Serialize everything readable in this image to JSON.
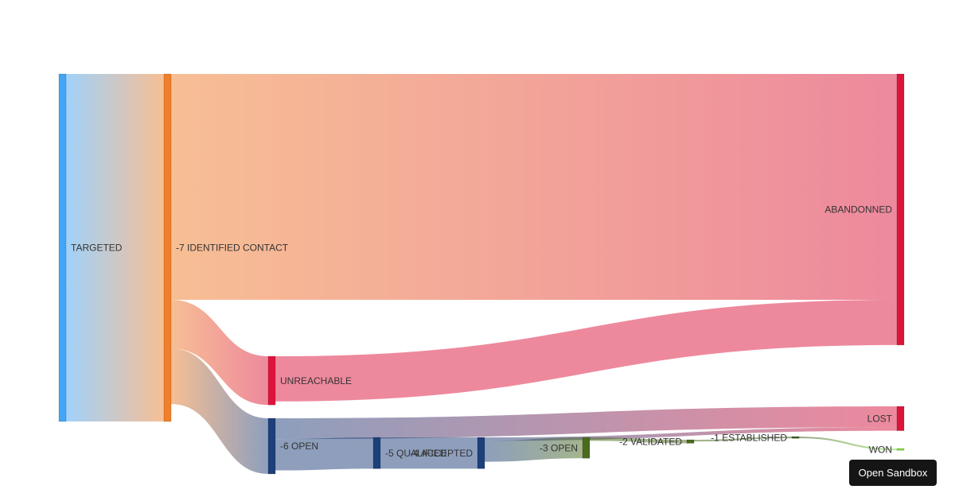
{
  "chart_data": {
    "type": "sankey",
    "nodes": [
      {
        "name": "TARGETED",
        "color": "#42a5f5"
      },
      {
        "name": "-7 IDENTIFIED CONTACT",
        "color": "#ef7f2b"
      },
      {
        "name": "UNREACHABLE",
        "color": "#dc143c"
      },
      {
        "name": "-6 OPEN",
        "color": "#1d3f7a"
      },
      {
        "name": "-5 QUALIFIED",
        "color": "#1d3f7a"
      },
      {
        "name": "-4 ACCEPTED",
        "color": "#1d3f7a"
      },
      {
        "name": "-3 OPEN",
        "color": "#4a6a1c"
      },
      {
        "name": "-2 VALIDATED",
        "color": "#4a6a1c"
      },
      {
        "name": "-1 ESTABLISHED",
        "color": "#3b5a1a"
      },
      {
        "name": "ABANDONNED",
        "color": "#dc143c"
      },
      {
        "name": "LOST",
        "color": "#dc143c"
      },
      {
        "name": "WON",
        "color": "#7cdc3a"
      }
    ],
    "links": [
      {
        "source": 0,
        "target": 1,
        "value": 100
      },
      {
        "source": 1,
        "target": 9,
        "value": 65
      },
      {
        "source": 1,
        "target": 2,
        "value": 14
      },
      {
        "source": 1,
        "target": 3,
        "value": 16
      },
      {
        "source": 2,
        "target": 9,
        "value": 13
      },
      {
        "source": 3,
        "target": 10,
        "value": 6
      },
      {
        "source": 3,
        "target": 4,
        "value": 9
      },
      {
        "source": 4,
        "target": 5,
        "value": 9
      },
      {
        "source": 5,
        "target": 10,
        "value": 1
      },
      {
        "source": 5,
        "target": 6,
        "value": 6
      },
      {
        "source": 6,
        "target": 7,
        "value": 1
      },
      {
        "source": 7,
        "target": 8,
        "value": 0.5
      },
      {
        "source": 8,
        "target": 11,
        "value": 0.5
      }
    ]
  },
  "ui": {
    "button": "Open Sandbox"
  }
}
